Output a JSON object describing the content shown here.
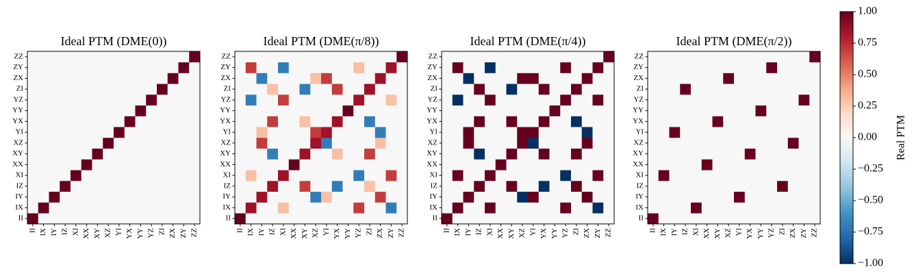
{
  "chart_data": [
    {
      "type": "heatmap",
      "title": "Ideal PTM (DME(0))",
      "categories": [
        "II",
        "IX",
        "IY",
        "IZ",
        "XI",
        "XX",
        "XY",
        "XZ",
        "YI",
        "YX",
        "YY",
        "YZ",
        "ZI",
        "ZX",
        "ZY",
        "ZZ"
      ],
      "colormap": "RdBu_r",
      "zlim": [
        -1,
        1
      ],
      "z": [
        [
          1,
          0,
          0,
          0,
          0,
          0,
          0,
          0,
          0,
          0,
          0,
          0,
          0,
          0,
          0,
          0
        ],
        [
          0,
          1,
          0,
          0,
          0,
          0,
          0,
          0,
          0,
          0,
          0,
          0,
          0,
          0,
          0,
          0
        ],
        [
          0,
          0,
          1,
          0,
          0,
          0,
          0,
          0,
          0,
          0,
          0,
          0,
          0,
          0,
          0,
          0
        ],
        [
          0,
          0,
          0,
          1,
          0,
          0,
          0,
          0,
          0,
          0,
          0,
          0,
          0,
          0,
          0,
          0
        ],
        [
          0,
          0,
          0,
          0,
          1,
          0,
          0,
          0,
          0,
          0,
          0,
          0,
          0,
          0,
          0,
          0
        ],
        [
          0,
          0,
          0,
          0,
          0,
          1,
          0,
          0,
          0,
          0,
          0,
          0,
          0,
          0,
          0,
          0
        ],
        [
          0,
          0,
          0,
          0,
          0,
          0,
          1,
          0,
          0,
          0,
          0,
          0,
          0,
          0,
          0,
          0
        ],
        [
          0,
          0,
          0,
          0,
          0,
          0,
          0,
          1,
          0,
          0,
          0,
          0,
          0,
          0,
          0,
          0
        ],
        [
          0,
          0,
          0,
          0,
          0,
          0,
          0,
          0,
          1,
          0,
          0,
          0,
          0,
          0,
          0,
          0
        ],
        [
          0,
          0,
          0,
          0,
          0,
          0,
          0,
          0,
          0,
          1,
          0,
          0,
          0,
          0,
          0,
          0
        ],
        [
          0,
          0,
          0,
          0,
          0,
          0,
          0,
          0,
          0,
          0,
          1,
          0,
          0,
          0,
          0,
          0
        ],
        [
          0,
          0,
          0,
          0,
          0,
          0,
          0,
          0,
          0,
          0,
          0,
          1,
          0,
          0,
          0,
          0
        ],
        [
          0,
          0,
          0,
          0,
          0,
          0,
          0,
          0,
          0,
          0,
          0,
          0,
          1,
          0,
          0,
          0
        ],
        [
          0,
          0,
          0,
          0,
          0,
          0,
          0,
          0,
          0,
          0,
          0,
          0,
          0,
          1,
          0,
          0
        ],
        [
          0,
          0,
          0,
          0,
          0,
          0,
          0,
          0,
          0,
          0,
          0,
          0,
          0,
          0,
          1,
          0
        ],
        [
          0,
          0,
          0,
          0,
          0,
          0,
          0,
          0,
          0,
          0,
          0,
          0,
          0,
          0,
          0,
          1
        ]
      ]
    },
    {
      "type": "heatmap",
      "title": "Ideal PTM (DME(π/8))",
      "categories": [
        "II",
        "IX",
        "IY",
        "IZ",
        "XI",
        "XX",
        "XY",
        "XZ",
        "YI",
        "YX",
        "YY",
        "YZ",
        "ZI",
        "ZX",
        "ZY",
        "ZZ"
      ],
      "colormap": "RdBu_r",
      "zlim": [
        -1,
        1
      ],
      "z": [
        [
          1,
          0,
          0,
          0,
          0,
          0,
          0,
          0,
          0,
          0,
          0,
          0,
          0,
          0,
          0,
          0
        ],
        [
          0,
          0.85,
          0,
          0,
          0.3,
          0,
          0,
          0,
          0,
          0,
          0,
          0.7,
          0,
          0,
          -0.7,
          0
        ],
        [
          0,
          0,
          0.85,
          0,
          0,
          0,
          0,
          -0.7,
          0.3,
          0,
          0,
          0,
          0,
          0.7,
          0,
          0
        ],
        [
          0,
          0,
          0,
          0.85,
          0,
          0,
          0.7,
          0,
          0,
          -0.7,
          0,
          0,
          0.3,
          0,
          0,
          0
        ],
        [
          0,
          0.3,
          0,
          0,
          0.85,
          0,
          0,
          0,
          0,
          0,
          0,
          -0.7,
          0,
          0,
          0.7,
          0
        ],
        [
          0,
          0,
          0,
          0,
          0,
          1,
          0,
          0,
          0,
          0,
          0,
          0,
          0,
          0,
          0,
          0
        ],
        [
          0,
          0,
          0,
          -0.7,
          0,
          0,
          0.85,
          0,
          0,
          0.3,
          0,
          0,
          0.7,
          0,
          0,
          0
        ],
        [
          0,
          0,
          0.7,
          0,
          0,
          0,
          0,
          0.85,
          -0.7,
          0,
          0,
          0,
          0,
          0.3,
          0,
          0
        ],
        [
          0,
          0,
          0.3,
          0,
          0,
          0,
          0,
          0.7,
          0.85,
          0,
          0,
          0,
          0,
          -0.7,
          0,
          0
        ],
        [
          0,
          0,
          0,
          0.7,
          0,
          0,
          0.3,
          0,
          0,
          0.85,
          0,
          0,
          -0.7,
          0,
          0,
          0
        ],
        [
          0,
          0,
          0,
          0,
          0,
          0,
          0,
          0,
          0,
          0,
          1,
          0,
          0,
          0,
          0,
          0
        ],
        [
          0,
          -0.7,
          0,
          0,
          0.7,
          0,
          0,
          0,
          0,
          0,
          0,
          0.85,
          0,
          0,
          0.3,
          0
        ],
        [
          0,
          0,
          0,
          0.3,
          0,
          0,
          -0.7,
          0,
          0,
          0.7,
          0,
          0,
          0.85,
          0,
          0,
          0
        ],
        [
          0,
          0,
          -0.7,
          0,
          0,
          0,
          0,
          0.3,
          0.7,
          0,
          0,
          0,
          0,
          0.85,
          0,
          0
        ],
        [
          0,
          0.7,
          0,
          0,
          -0.7,
          0,
          0,
          0,
          0,
          0,
          0,
          0.3,
          0,
          0,
          0.85,
          0
        ],
        [
          0,
          0,
          0,
          0,
          0,
          0,
          0,
          0,
          0,
          0,
          0,
          0,
          0,
          0,
          0,
          1
        ]
      ]
    },
    {
      "type": "heatmap",
      "title": "Ideal PTM (DME(π/4))",
      "categories": [
        "II",
        "IX",
        "IY",
        "IZ",
        "XI",
        "XX",
        "XY",
        "XZ",
        "YI",
        "YX",
        "YY",
        "YZ",
        "ZI",
        "ZX",
        "ZY",
        "ZZ"
      ],
      "colormap": "RdBu_r",
      "zlim": [
        -1,
        1
      ],
      "z": [
        [
          1,
          0,
          0,
          0,
          0,
          0,
          0,
          0,
          0,
          0,
          0,
          0,
          0,
          0,
          0,
          0
        ],
        [
          0,
          1,
          0,
          0,
          1,
          0,
          0,
          0,
          0,
          0,
          0,
          1,
          0,
          0,
          -1,
          0
        ],
        [
          0,
          0,
          1,
          0,
          0,
          0,
          0,
          -1,
          1,
          0,
          0,
          0,
          0,
          1,
          0,
          0
        ],
        [
          0,
          0,
          0,
          1,
          0,
          0,
          1,
          0,
          0,
          -1,
          0,
          0,
          1,
          0,
          0,
          0
        ],
        [
          0,
          1,
          0,
          0,
          1,
          0,
          0,
          0,
          0,
          0,
          0,
          -1,
          0,
          0,
          1,
          0
        ],
        [
          0,
          0,
          0,
          0,
          0,
          1,
          0,
          0,
          0,
          0,
          0,
          0,
          0,
          0,
          0,
          0
        ],
        [
          0,
          0,
          0,
          -1,
          0,
          0,
          1,
          0,
          0,
          1,
          0,
          0,
          1,
          0,
          0,
          0
        ],
        [
          0,
          0,
          1,
          0,
          0,
          0,
          0,
          1,
          -1,
          0,
          0,
          0,
          0,
          1,
          0,
          0
        ],
        [
          0,
          0,
          1,
          0,
          0,
          0,
          0,
          1,
          1,
          0,
          0,
          0,
          0,
          -1,
          0,
          0
        ],
        [
          0,
          0,
          0,
          1,
          0,
          0,
          1,
          0,
          0,
          1,
          0,
          0,
          -1,
          0,
          0,
          0
        ],
        [
          0,
          0,
          0,
          0,
          0,
          0,
          0,
          0,
          0,
          0,
          1,
          0,
          0,
          0,
          0,
          0
        ],
        [
          0,
          -1,
          0,
          0,
          1,
          0,
          0,
          0,
          0,
          0,
          0,
          1,
          0,
          0,
          1,
          0
        ],
        [
          0,
          0,
          0,
          1,
          0,
          0,
          -1,
          0,
          0,
          1,
          0,
          0,
          1,
          0,
          0,
          0
        ],
        [
          0,
          0,
          -1,
          0,
          0,
          0,
          0,
          1,
          1,
          0,
          0,
          0,
          0,
          1,
          0,
          0
        ],
        [
          0,
          1,
          0,
          0,
          -1,
          0,
          0,
          0,
          0,
          0,
          0,
          1,
          0,
          0,
          1,
          0
        ],
        [
          0,
          0,
          0,
          0,
          0,
          0,
          0,
          0,
          0,
          0,
          0,
          0,
          0,
          0,
          0,
          1
        ]
      ]
    },
    {
      "type": "heatmap",
      "title": "Ideal PTM (DME(π/2))",
      "categories": [
        "II",
        "IX",
        "IY",
        "IZ",
        "XI",
        "XX",
        "XY",
        "XZ",
        "YI",
        "YX",
        "YY",
        "YZ",
        "ZI",
        "ZX",
        "ZY",
        "ZZ"
      ],
      "colormap": "RdBu_r",
      "zlim": [
        -1,
        1
      ],
      "colorbar_label": "Real PTM",
      "zticks": [
        {
          "value": -1,
          "label": "−1.00"
        },
        {
          "value": -0.75,
          "label": "−0.75"
        },
        {
          "value": -0.5,
          "label": "−0.50"
        },
        {
          "value": -0.25,
          "label": "−0.25"
        },
        {
          "value": 0,
          "label": "0.00"
        },
        {
          "value": 0.25,
          "label": "0.25"
        },
        {
          "value": 0.5,
          "label": "0.50"
        },
        {
          "value": 0.75,
          "label": "0.75"
        },
        {
          "value": 1,
          "label": "1.00"
        }
      ],
      "z": [
        [
          1,
          0,
          0,
          0,
          0,
          0,
          0,
          0,
          0,
          0,
          0,
          0,
          0,
          0,
          0,
          0
        ],
        [
          0,
          0,
          0,
          0,
          1,
          0,
          0,
          0,
          0,
          0,
          0,
          0,
          0,
          0,
          0,
          0
        ],
        [
          0,
          0,
          0,
          0,
          0,
          0,
          0,
          0,
          1,
          0,
          0,
          0,
          0,
          0,
          0,
          0
        ],
        [
          0,
          0,
          0,
          0,
          0,
          0,
          0,
          0,
          0,
          0,
          0,
          0,
          1,
          0,
          0,
          0
        ],
        [
          0,
          1,
          0,
          0,
          0,
          0,
          0,
          0,
          0,
          0,
          0,
          0,
          0,
          0,
          0,
          0
        ],
        [
          0,
          0,
          0,
          0,
          0,
          1,
          0,
          0,
          0,
          0,
          0,
          0,
          0,
          0,
          0,
          0
        ],
        [
          0,
          0,
          0,
          0,
          0,
          0,
          0,
          0,
          0,
          1,
          0,
          0,
          0,
          0,
          0,
          0
        ],
        [
          0,
          0,
          0,
          0,
          0,
          0,
          0,
          0,
          0,
          0,
          0,
          0,
          0,
          1,
          0,
          0
        ],
        [
          0,
          0,
          1,
          0,
          0,
          0,
          0,
          0,
          0,
          0,
          0,
          0,
          0,
          0,
          0,
          0
        ],
        [
          0,
          0,
          0,
          0,
          0,
          0,
          1,
          0,
          0,
          0,
          0,
          0,
          0,
          0,
          0,
          0
        ],
        [
          0,
          0,
          0,
          0,
          0,
          0,
          0,
          0,
          0,
          0,
          1,
          0,
          0,
          0,
          0,
          0
        ],
        [
          0,
          0,
          0,
          0,
          0,
          0,
          0,
          0,
          0,
          0,
          0,
          0,
          0,
          0,
          1,
          0
        ],
        [
          0,
          0,
          0,
          1,
          0,
          0,
          0,
          0,
          0,
          0,
          0,
          0,
          0,
          0,
          0,
          0
        ],
        [
          0,
          0,
          0,
          0,
          0,
          0,
          0,
          1,
          0,
          0,
          0,
          0,
          0,
          0,
          0,
          0
        ],
        [
          0,
          0,
          0,
          0,
          0,
          0,
          0,
          0,
          0,
          0,
          0,
          1,
          0,
          0,
          0,
          0
        ],
        [
          0,
          0,
          0,
          0,
          0,
          0,
          0,
          0,
          0,
          0,
          0,
          0,
          0,
          0,
          0,
          1
        ]
      ]
    }
  ]
}
